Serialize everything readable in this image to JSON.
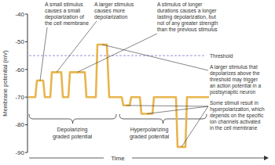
{
  "chart_data": {
    "type": "line",
    "xlabel": "Time",
    "ylabel": "Membrane potential (mV)",
    "x": [
      2,
      10,
      12,
      20,
      22,
      29,
      31,
      43,
      45,
      52,
      54,
      73,
      75,
      87,
      89,
      101,
      104,
      120,
      122,
      130,
      132,
      143,
      145,
      159,
      161,
      189,
      191,
      201,
      203,
      230
    ],
    "series": [
      {
        "name": "Membrane potential",
        "color": "#e8b54d",
        "line_style": "solid",
        "values": [
          -70,
          -70,
          -64,
          -64,
          -70,
          -70,
          -61,
          -61,
          -70,
          -70,
          -61,
          -61,
          -70,
          -70,
          -51,
          -51,
          -70,
          -70,
          -73,
          -73,
          -70,
          -70,
          -76,
          -76,
          -70,
          -70,
          -88,
          -88,
          -70,
          -70
        ]
      }
    ],
    "xlim": [
      0,
      310
    ],
    "ylim": [
      -90,
      -40
    ],
    "yticks": [
      -40,
      -50,
      -60,
      -70,
      -80,
      -90
    ],
    "tick_labels": "y",
    "grid": false,
    "threshold": {
      "value": -55,
      "label": "Threshold"
    },
    "annotations": [
      {
        "lines": [
          "A small stimulus",
          "causes a small",
          "depolarization of",
          "the cell membrane"
        ]
      },
      {
        "lines": [
          "A larger stimulus",
          "causes more",
          "depolarization"
        ]
      },
      {
        "lines": [
          "A stimulus of longer",
          "durations causes a longer",
          "lasting depolarization, but",
          "not of any greater strength",
          "than the previous stimulus"
        ]
      },
      {
        "lines": [
          "A larger stimulus that",
          "depolarizes above the",
          "threshold may trigger",
          "an action potential in a",
          "postsynaptic neuron"
        ]
      },
      {
        "lines": [
          "Some stimuli result in",
          "hyperpolarization, which",
          "depends on the specific",
          "ion channels activated",
          "in the cell membrane"
        ]
      }
    ],
    "braces": [
      {
        "lines": [
          "Depolarizing",
          "graded potential"
        ]
      },
      {
        "lines": [
          "Hyperpolarizing",
          "graded potential"
        ]
      }
    ]
  }
}
